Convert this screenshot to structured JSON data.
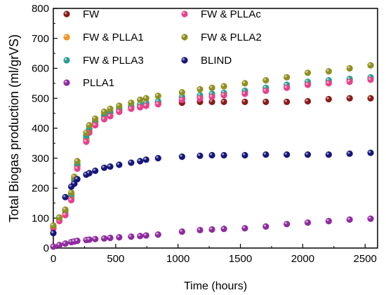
{
  "chart_data": {
    "type": "scatter",
    "title": "",
    "xlabel": "Time (hours)",
    "ylabel": "Total Biogas production (ml/grVS)",
    "xlim": [
      0,
      2600
    ],
    "ylim": [
      0,
      800
    ],
    "xticks": [
      "0",
      "500",
      "1000",
      "1500",
      "2000",
      "2500"
    ],
    "yticks": [
      "0",
      "100",
      "200",
      "300",
      "400",
      "500",
      "600",
      "700",
      "800"
    ],
    "legend": "top-left, two columns, inside plot",
    "grid": false,
    "series": [
      {
        "name": "FW",
        "color": "#8b1a1a",
        "x": [
          0,
          48,
          96,
          144,
          168,
          192,
          264,
          288,
          336,
          408,
          456,
          528,
          624,
          696,
          744,
          840,
          1032,
          1176,
          1272,
          1368,
          1536,
          1704,
          1872,
          2040,
          2208,
          2376,
          2544
        ],
        "y": [
          70,
          95,
          115,
          170,
          225,
          275,
          365,
          395,
          420,
          440,
          450,
          460,
          470,
          475,
          480,
          485,
          485,
          488,
          488,
          488,
          488,
          488,
          488,
          490,
          497,
          500,
          500
        ]
      },
      {
        "name": "FW & PLLA1",
        "color": "#f5921e",
        "x": [
          0,
          48,
          96,
          144,
          168,
          192,
          264,
          288,
          336,
          408,
          456,
          528,
          624,
          696,
          744,
          840,
          1032,
          1176,
          1272,
          1368,
          1536,
          1704,
          1872,
          2040,
          2208,
          2376,
          2544
        ],
        "y": [
          68,
          93,
          112,
          165,
          222,
          270,
          360,
          390,
          415,
          435,
          445,
          458,
          468,
          475,
          478,
          485,
          500,
          505,
          510,
          515,
          520,
          530,
          540,
          550,
          555,
          560,
          568
        ]
      },
      {
        "name": "FW & PLLA3",
        "color": "#2a9d8f",
        "x": [
          0,
          48,
          96,
          144,
          168,
          192,
          264,
          288,
          336,
          408,
          456,
          528,
          624,
          696,
          744,
          840,
          1032,
          1176,
          1272,
          1368,
          1536,
          1704,
          1872,
          2040,
          2208,
          2376,
          2544
        ],
        "y": [
          72,
          100,
          125,
          180,
          230,
          280,
          375,
          400,
          425,
          445,
          455,
          465,
          475,
          480,
          485,
          490,
          505,
          510,
          515,
          518,
          525,
          535,
          545,
          555,
          560,
          565,
          570
        ]
      },
      {
        "name": "PLLA1",
        "color": "#8e2a9e",
        "x": [
          0,
          48,
          96,
          144,
          168,
          192,
          264,
          288,
          336,
          408,
          456,
          528,
          624,
          696,
          744,
          840,
          1032,
          1176,
          1272,
          1368,
          1536,
          1704,
          1872,
          2040,
          2208,
          2376,
          2544
        ],
        "y": [
          5,
          10,
          15,
          20,
          22,
          24,
          27,
          28,
          30,
          32,
          34,
          36,
          38,
          40,
          42,
          45,
          55,
          60,
          62,
          64,
          66,
          72,
          80,
          85,
          90,
          95,
          98
        ]
      },
      {
        "name": "FW & PLLAc",
        "color": "#e8408c",
        "x": [
          0,
          48,
          96,
          144,
          168,
          192,
          264,
          288,
          336,
          408,
          456,
          528,
          624,
          696,
          744,
          840,
          1032,
          1176,
          1272,
          1368,
          1536,
          1704,
          1872,
          2040,
          2208,
          2376,
          2544
        ],
        "y": [
          65,
          90,
          110,
          160,
          215,
          265,
          355,
          385,
          410,
          430,
          440,
          455,
          465,
          470,
          475,
          480,
          495,
          500,
          505,
          510,
          515,
          525,
          535,
          545,
          550,
          555,
          562
        ]
      },
      {
        "name": "FW & PLLA2",
        "color": "#8f8f1f",
        "x": [
          0,
          48,
          96,
          144,
          168,
          192,
          264,
          288,
          336,
          408,
          456,
          528,
          624,
          696,
          744,
          840,
          1032,
          1176,
          1272,
          1368,
          1536,
          1704,
          1872,
          2040,
          2208,
          2376,
          2544
        ],
        "y": [
          75,
          102,
          128,
          185,
          238,
          290,
          385,
          410,
          432,
          455,
          465,
          475,
          485,
          495,
          500,
          508,
          520,
          530,
          535,
          540,
          550,
          560,
          570,
          585,
          590,
          600,
          610
        ]
      },
      {
        "name": "BLIND",
        "color": "#16167a",
        "x": [
          0,
          96,
          144,
          168,
          192,
          264,
          288,
          336,
          408,
          456,
          528,
          624,
          696,
          744,
          840,
          1032,
          1176,
          1272,
          1368,
          1536,
          1704,
          1872,
          2040,
          2208,
          2376,
          2544
        ],
        "y": [
          50,
          170,
          205,
          215,
          230,
          245,
          250,
          258,
          268,
          272,
          278,
          285,
          290,
          295,
          300,
          305,
          308,
          310,
          310,
          310,
          312,
          312,
          312,
          312,
          315,
          318
        ]
      }
    ]
  }
}
